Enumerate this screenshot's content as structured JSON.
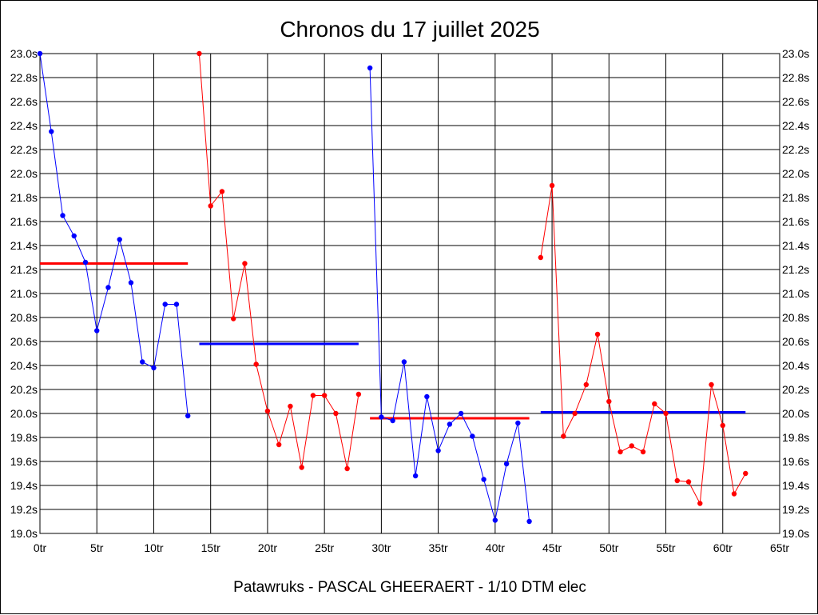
{
  "title": "Chronos du 17 juillet 2025",
  "footer": "Patawruks - PASCAL GHEERAERT - 1/10 DTM elec",
  "chart_data": {
    "type": "line",
    "title": "Chronos du 17 juillet 2025",
    "xlabel": "",
    "ylabel": "",
    "xlim": [
      0,
      65
    ],
    "ylim": [
      19.0,
      23.0
    ],
    "grid": true,
    "x_ticks": [
      0,
      5,
      10,
      15,
      20,
      25,
      30,
      35,
      40,
      45,
      50,
      55,
      60,
      65
    ],
    "x_tick_labels": [
      "0tr",
      "5tr",
      "10tr",
      "15tr",
      "20tr",
      "25tr",
      "30tr",
      "35tr",
      "40tr",
      "45tr",
      "50tr",
      "55tr",
      "60tr",
      "65tr"
    ],
    "y_ticks": [
      19.0,
      19.2,
      19.4,
      19.6,
      19.8,
      20.0,
      20.2,
      20.4,
      20.6,
      20.8,
      21.0,
      21.2,
      21.4,
      21.6,
      21.8,
      22.0,
      22.2,
      22.4,
      22.6,
      22.8,
      23.0
    ],
    "y_tick_labels": [
      "19.0s",
      "19.2s",
      "19.4s",
      "19.6s",
      "19.8s",
      "20.0s",
      "20.2s",
      "20.4s",
      "20.6s",
      "20.8s",
      "21.0s",
      "21.2s",
      "21.4s",
      "21.6s",
      "21.8s",
      "22.0s",
      "22.2s",
      "22.4s",
      "22.6s",
      "22.8s",
      "23.0s"
    ],
    "series": [
      {
        "color": "#0000ff",
        "x": [
          0,
          1,
          2,
          3,
          4,
          5,
          6,
          7,
          8,
          9,
          10,
          11,
          12,
          13
        ],
        "y": [
          23.0,
          22.35,
          21.65,
          21.48,
          21.26,
          20.69,
          21.05,
          21.45,
          21.09,
          20.43,
          20.38,
          20.91,
          20.91,
          19.98
        ]
      },
      {
        "color": "#ff0000",
        "x": [
          14,
          15,
          16,
          17,
          18,
          19,
          20,
          21,
          22,
          23,
          24,
          25,
          26,
          27,
          28
        ],
        "y": [
          23.0,
          21.73,
          21.85,
          20.79,
          21.25,
          20.41,
          20.02,
          19.74,
          20.06,
          19.55,
          20.15,
          20.15,
          20.0,
          19.54,
          20.16
        ]
      },
      {
        "color": "#0000ff",
        "x": [
          29,
          30,
          31,
          32,
          33,
          34,
          35,
          36,
          37,
          38,
          39,
          40,
          41,
          42,
          43
        ],
        "y": [
          22.88,
          19.97,
          19.94,
          20.43,
          19.48,
          20.14,
          19.69,
          19.91,
          20.0,
          19.81,
          19.45,
          19.11,
          19.58,
          19.92,
          19.1
        ]
      },
      {
        "color": "#ff0000",
        "x": [
          44,
          45,
          46,
          47,
          48,
          49,
          50,
          51,
          52,
          53,
          54,
          55,
          56,
          57,
          58,
          59,
          60,
          61,
          62
        ],
        "y": [
          21.3,
          21.9,
          19.81,
          20.0,
          20.24,
          20.66,
          20.1,
          19.68,
          19.73,
          19.68,
          20.08,
          20.0,
          19.44,
          19.43,
          19.25,
          20.24,
          19.9,
          19.33,
          19.5
        ]
      }
    ],
    "average_lines": [
      {
        "color": "#ff0000",
        "x_start": 0,
        "x_end": 13,
        "y": 21.25
      },
      {
        "color": "#0000ff",
        "x_start": 14,
        "x_end": 28,
        "y": 20.58
      },
      {
        "color": "#ff0000",
        "x_start": 29,
        "x_end": 43,
        "y": 19.96
      },
      {
        "color": "#0000ff",
        "x_start": 44,
        "x_end": 62,
        "y": 20.01
      }
    ]
  }
}
